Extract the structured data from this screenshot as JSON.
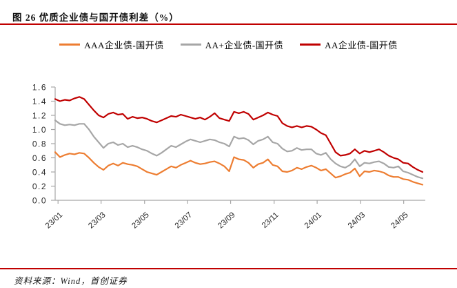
{
  "header": {
    "title": "图 26 优质企业债与国开债利差（%）"
  },
  "footer": {
    "source": "资料来源：Wind，首创证券"
  },
  "colors": {
    "accent_red": "#C00000",
    "axis": "#A6A6A6",
    "text": "#262626"
  },
  "chart_data": {
    "type": "line",
    "title": "优质企业债与国开债利差（%）",
    "xlabel": "",
    "ylabel": "",
    "ylim": [
      0.0,
      1.6
    ],
    "ytick_step": 0.2,
    "grid": false,
    "legend_position": "top",
    "x_description": "weekly observations, 2023/01 to 2024/06",
    "y_ticklabels": [
      "0.0",
      "0.2",
      "0.4",
      "0.6",
      "0.8",
      "1.0",
      "1.2",
      "1.4",
      "1.6"
    ],
    "x_ticks": [
      {
        "index": 0.6,
        "label": "23/01"
      },
      {
        "index": 9.5,
        "label": "23/03"
      },
      {
        "index": 18.5,
        "label": "23/05"
      },
      {
        "index": 27.4,
        "label": "23/07"
      },
      {
        "index": 36.3,
        "label": "23/09"
      },
      {
        "index": 45.3,
        "label": "23/11"
      },
      {
        "index": 54.2,
        "label": "24/01"
      },
      {
        "index": 63.2,
        "label": "24/03"
      },
      {
        "index": 72.1,
        "label": "24/05"
      }
    ],
    "series": [
      {
        "name": "AAA企业债-国开债",
        "color": "#ED7D31",
        "values": [
          0.68,
          0.61,
          0.64,
          0.66,
          0.65,
          0.67,
          0.66,
          0.6,
          0.53,
          0.47,
          0.43,
          0.49,
          0.52,
          0.49,
          0.53,
          0.51,
          0.5,
          0.48,
          0.44,
          0.4,
          0.38,
          0.36,
          0.4,
          0.44,
          0.48,
          0.46,
          0.5,
          0.53,
          0.56,
          0.53,
          0.51,
          0.52,
          0.54,
          0.55,
          0.52,
          0.48,
          0.41,
          0.61,
          0.58,
          0.57,
          0.53,
          0.46,
          0.51,
          0.53,
          0.58,
          0.5,
          0.48,
          0.41,
          0.4,
          0.42,
          0.46,
          0.44,
          0.47,
          0.49,
          0.46,
          0.42,
          0.44,
          0.38,
          0.32,
          0.34,
          0.37,
          0.39,
          0.45,
          0.34,
          0.41,
          0.4,
          0.42,
          0.41,
          0.39,
          0.35,
          0.33,
          0.33,
          0.3,
          0.29,
          0.26,
          0.24,
          0.22
        ]
      },
      {
        "name": "AA+企业债-国开债",
        "color": "#A6A6A6",
        "values": [
          1.13,
          1.08,
          1.06,
          1.07,
          1.06,
          1.08,
          1.08,
          1.0,
          0.9,
          0.82,
          0.74,
          0.8,
          0.82,
          0.78,
          0.8,
          0.75,
          0.77,
          0.75,
          0.72,
          0.7,
          0.66,
          0.63,
          0.67,
          0.72,
          0.77,
          0.75,
          0.79,
          0.83,
          0.86,
          0.84,
          0.82,
          0.84,
          0.86,
          0.85,
          0.82,
          0.8,
          0.76,
          0.9,
          0.87,
          0.88,
          0.85,
          0.79,
          0.84,
          0.86,
          0.9,
          0.82,
          0.8,
          0.73,
          0.69,
          0.7,
          0.74,
          0.71,
          0.72,
          0.72,
          0.66,
          0.64,
          0.67,
          0.58,
          0.52,
          0.48,
          0.46,
          0.5,
          0.58,
          0.48,
          0.53,
          0.52,
          0.54,
          0.55,
          0.52,
          0.47,
          0.46,
          0.48,
          0.41,
          0.39,
          0.36,
          0.33,
          0.31
        ]
      },
      {
        "name": "AA企业债-国开债",
        "color": "#C00000",
        "values": [
          1.43,
          1.4,
          1.42,
          1.41,
          1.44,
          1.46,
          1.43,
          1.35,
          1.27,
          1.2,
          1.17,
          1.22,
          1.24,
          1.21,
          1.22,
          1.15,
          1.18,
          1.16,
          1.17,
          1.15,
          1.12,
          1.1,
          1.13,
          1.16,
          1.19,
          1.18,
          1.21,
          1.19,
          1.17,
          1.15,
          1.17,
          1.14,
          1.18,
          1.23,
          1.16,
          1.14,
          1.12,
          1.25,
          1.23,
          1.25,
          1.22,
          1.14,
          1.17,
          1.2,
          1.24,
          1.21,
          1.19,
          1.09,
          1.05,
          1.03,
          1.05,
          1.03,
          1.05,
          1.04,
          1.0,
          0.95,
          0.92,
          0.8,
          0.68,
          0.63,
          0.64,
          0.66,
          0.72,
          0.66,
          0.7,
          0.68,
          0.7,
          0.72,
          0.68,
          0.63,
          0.6,
          0.58,
          0.53,
          0.52,
          0.47,
          0.43,
          0.4
        ]
      }
    ]
  }
}
